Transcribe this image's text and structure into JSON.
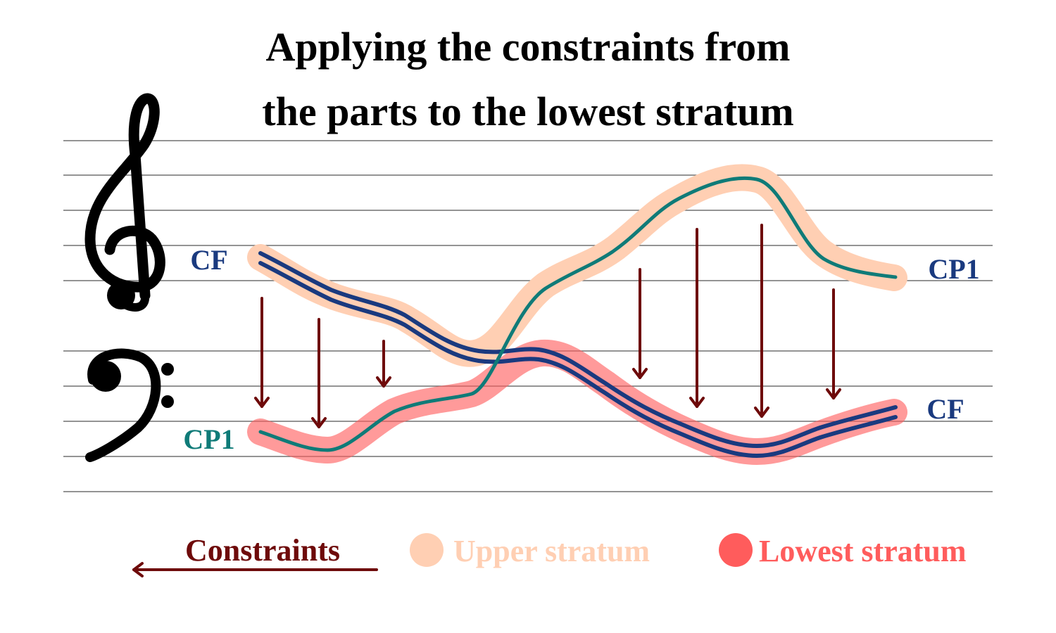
{
  "title": {
    "line1": "Applying the constraints from",
    "line2": "the parts to the lowest stratum"
  },
  "labels": {
    "cf_upper": "CF",
    "cp1_lower": "CP1",
    "cp1_right": "CP1",
    "cf_right": "CF"
  },
  "icons": {
    "treble_clef": "treble-clef-icon",
    "bass_clef": "bass-clef-icon"
  },
  "legend": {
    "constraints": "Constraints",
    "upper_stratum": "Upper stratum",
    "lowest_stratum": "Lowest stratum"
  },
  "colors": {
    "cf_line": "#1a3a7f",
    "cp1_line": "#0f7b78",
    "upper_stratum": "#ffcfb3",
    "lowest_stratum": "#ff5c5c",
    "constraints": "#6e0a0a",
    "title": "#000000"
  }
}
